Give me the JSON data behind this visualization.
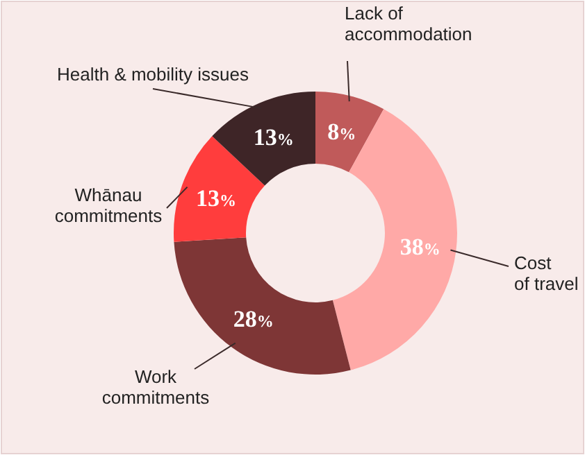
{
  "chart_data": {
    "type": "donut",
    "categories": [
      "Lack of\naccommodation",
      "Cost\nof travel",
      "Work\ncommitments",
      "Whānau\ncommitments",
      "Health & mobility issues"
    ],
    "values": [
      8,
      38,
      28,
      13,
      13
    ],
    "colors": [
      "#c05a5a",
      "#ffa9a7",
      "#7e3636",
      "#ff3d3d",
      "#3e2527"
    ],
    "value_labels": [
      "8%",
      "38%",
      "28%",
      "13%",
      "13%"
    ]
  }
}
